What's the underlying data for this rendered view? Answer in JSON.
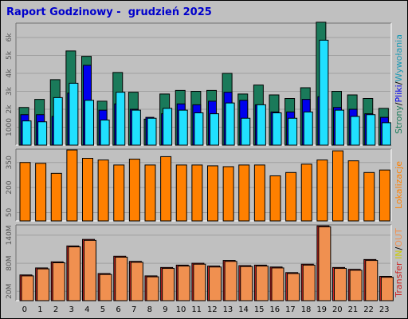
{
  "report_title": "Raport Godzinowy -  grudzień 2025",
  "colors": {
    "background": "#c0c0c0",
    "panel": "#c0c0c0",
    "grid": "#a0a0a0",
    "strony": "#1a7a5a",
    "pliki": "#0000ee",
    "wywolania": "#20e0ff",
    "lokalizacje": "#ff8000",
    "transfer_in": "#cc2222",
    "transfer_out": "#f09050",
    "tick_text": "#555555",
    "hour_text": "#000000"
  },
  "chart_data": [
    {
      "type": "bar",
      "panel": "requests",
      "categories": [
        "0",
        "1",
        "2",
        "3",
        "4",
        "5",
        "6",
        "7",
        "8",
        "9",
        "10",
        "11",
        "12",
        "13",
        "14",
        "15",
        "16",
        "17",
        "18",
        "19",
        "20",
        "21",
        "22",
        "23"
      ],
      "ylim": [
        0,
        6800
      ],
      "yticks": [
        1000,
        2000,
        3000,
        4000,
        5000,
        6000
      ],
      "ytick_labels": [
        "1000",
        "2k",
        "3k",
        "4k",
        "5k",
        "6k"
      ],
      "legend": {
        "strony": "Strony",
        "pliki": "Pliki",
        "wywolania": "Wywołania",
        "sep": "/"
      },
      "series": [
        {
          "name": "Strony",
          "values": [
            2100,
            2550,
            3650,
            5250,
            4950,
            2450,
            4050,
            2950,
            1450,
            2850,
            3050,
            3000,
            3050,
            4000,
            2850,
            3350,
            2800,
            2600,
            3200,
            6850,
            3000,
            2800,
            2600,
            2050
          ]
        },
        {
          "name": "Pliki",
          "values": [
            1700,
            1700,
            1600,
            2900,
            4450,
            1950,
            2300,
            2000,
            1550,
            1750,
            2300,
            2250,
            2450,
            2950,
            2500,
            2250,
            1850,
            1850,
            2550,
            2700,
            2100,
            2000,
            1750,
            1550
          ]
        },
        {
          "name": "Wywołania",
          "values": [
            1350,
            1300,
            2650,
            3450,
            2500,
            1400,
            2950,
            1950,
            1500,
            2050,
            1950,
            1800,
            1750,
            2350,
            1500,
            2250,
            1800,
            1500,
            1850,
            5850,
            1950,
            1600,
            1700,
            1250
          ]
        }
      ]
    },
    {
      "type": "bar",
      "panel": "locations",
      "categories": [
        "0",
        "1",
        "2",
        "3",
        "4",
        "5",
        "6",
        "7",
        "8",
        "9",
        "10",
        "11",
        "12",
        "13",
        "14",
        "15",
        "16",
        "17",
        "18",
        "19",
        "20",
        "21",
        "22",
        "23"
      ],
      "ylim": [
        0,
        430
      ],
      "yticks": [
        50,
        200,
        350
      ],
      "ytick_labels": [
        "50",
        "200",
        "350"
      ],
      "legend": {
        "lokalizacje": "Lokalizacje"
      },
      "series": [
        {
          "name": "Lokalizacje",
          "values": [
            350,
            345,
            285,
            425,
            375,
            365,
            335,
            370,
            335,
            385,
            335,
            335,
            330,
            325,
            335,
            335,
            270,
            290,
            340,
            365,
            420,
            360,
            290,
            305
          ]
        }
      ]
    },
    {
      "type": "bar",
      "panel": "transfer",
      "categories": [
        "0",
        "1",
        "2",
        "3",
        "4",
        "5",
        "6",
        "7",
        "8",
        "9",
        "10",
        "11",
        "12",
        "13",
        "14",
        "15",
        "16",
        "17",
        "18",
        "19",
        "20",
        "21",
        "22",
        "23"
      ],
      "ylim": [
        0,
        162
      ],
      "yticks": [
        20,
        80,
        140
      ],
      "ytick_labels": [
        "20M",
        "80M",
        "140M"
      ],
      "legend": {
        "transfer": "Transfer",
        "in": "IN",
        "out": "OUT",
        "sep": "/"
      },
      "series": [
        {
          "name": "IN",
          "values": [
            55,
            70,
            83,
            117,
            131,
            58,
            95,
            84,
            53,
            71,
            76,
            80,
            74,
            86,
            75,
            76,
            72,
            60,
            78,
            160,
            71,
            67,
            88,
            52
          ]
        },
        {
          "name": "OUT",
          "values": [
            53,
            68,
            81,
            115,
            129,
            56,
            93,
            82,
            51,
            69,
            74,
            78,
            72,
            84,
            73,
            74,
            70,
            58,
            76,
            158,
            69,
            65,
            86,
            50
          ]
        }
      ]
    }
  ]
}
